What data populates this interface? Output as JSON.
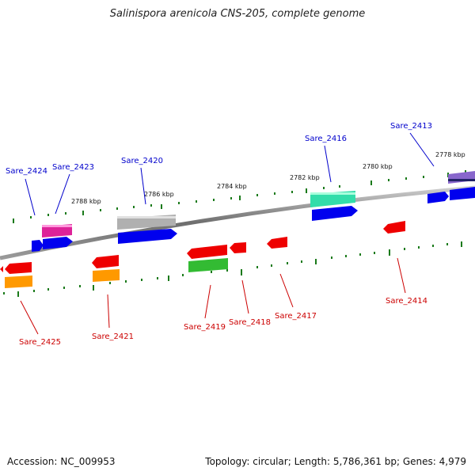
{
  "title": "Salinispora arenicola CNS-205, complete genome",
  "accession": {
    "label": "Accession:",
    "value": "NC_009953"
  },
  "summary": {
    "topology_label": "Topology:",
    "topology": "circular",
    "length_label": "Length:",
    "length": "5,786,361 bp",
    "genes_label": "Genes:",
    "genes": "4,979"
  },
  "colors": {
    "backbone": "#808080",
    "forward_label": "#0000cc",
    "reverse_label": "#cc0000",
    "tick": "#1a7a1a",
    "blue": "#0000ee",
    "red": "#ee0000",
    "magenta": "#dd2299",
    "gray": "#b0b0b0",
    "teal": "#33ddaa",
    "orange": "#ff9900",
    "green": "#33bb33",
    "purple": "#8866cc"
  },
  "scale_ticks": [
    "2788 kbp",
    "2786 kbp",
    "2784 kbp",
    "2782 kbp",
    "2780 kbp",
    "2778 kbp"
  ],
  "forward_labels": [
    "Sare_2424",
    "Sare_2423",
    "Sare_2420",
    "Sare_2416",
    "Sare_2413"
  ],
  "reverse_labels": [
    "Sare_2425",
    "Sare_2421",
    "Sare_2419",
    "Sare_2418",
    "Sare_2417",
    "Sare_2414"
  ]
}
